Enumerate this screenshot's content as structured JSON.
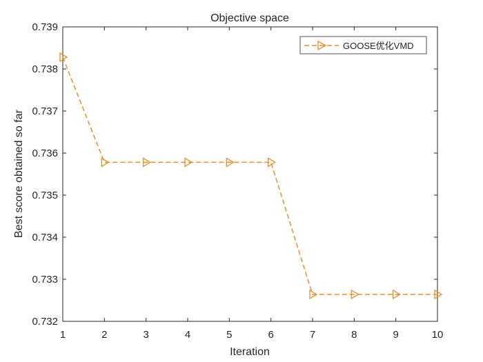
{
  "chart_data": {
    "type": "line",
    "title": "Objective space",
    "xlabel": "Iteration",
    "ylabel": "Best score obtained so far",
    "xlim": [
      1,
      10
    ],
    "ylim": [
      0.732,
      0.739
    ],
    "xticks": [
      1,
      2,
      3,
      4,
      5,
      6,
      7,
      8,
      9,
      10
    ],
    "yticks": [
      0.732,
      0.733,
      0.734,
      0.735,
      0.736,
      0.737,
      0.738,
      0.739
    ],
    "xtick_labels": [
      "1",
      "2",
      "3",
      "4",
      "5",
      "6",
      "7",
      "8",
      "9",
      "10"
    ],
    "ytick_labels": [
      "0.732",
      "0.733",
      "0.734",
      "0.735",
      "0.736",
      "0.737",
      "0.738",
      "0.739"
    ],
    "grid": false,
    "legend_position": "top-right",
    "x": [
      1,
      2,
      3,
      4,
      5,
      6,
      7,
      8,
      9,
      10
    ],
    "series": [
      {
        "name": "GOOSE优化VMD",
        "values": [
          0.73828,
          0.73578,
          0.73578,
          0.73578,
          0.73578,
          0.73578,
          0.73264,
          0.73264,
          0.73264,
          0.73264
        ],
        "color": "#EA8E27",
        "line_style": "dashed",
        "marker": "triangle-right"
      }
    ]
  }
}
